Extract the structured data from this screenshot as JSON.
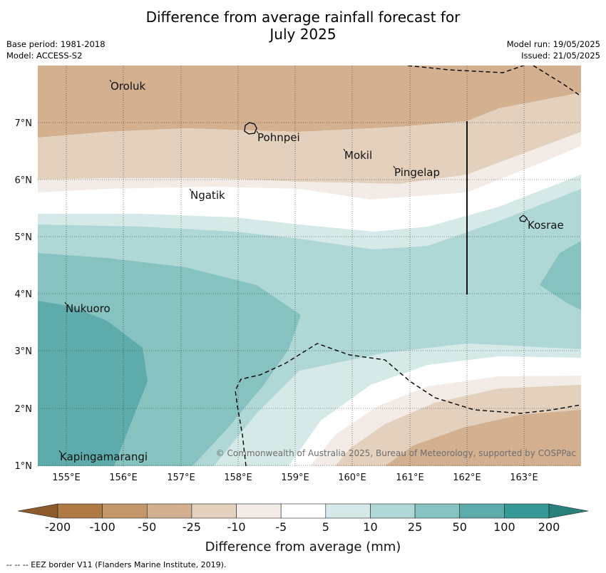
{
  "header": {
    "title_line1": "Difference from average rainfall forecast for",
    "title_line2": "July 2025",
    "base_period": "Base period: 1981-2018",
    "model": "Model: ACCESS-S2",
    "model_run": "Model run: 19/05/2025",
    "issued": "Issued: 21/05/2025"
  },
  "map": {
    "lat_labels": [
      "7°N",
      "6°N",
      "5°N",
      "4°N",
      "3°N",
      "2°N",
      "1°N"
    ],
    "lon_labels": [
      "155°E",
      "156°E",
      "157°E",
      "158°E",
      "159°E",
      "160°E",
      "161°E",
      "162°E",
      "163°E"
    ],
    "places": [
      "Oroluk",
      "Pohnpei",
      "Mokil",
      "Pingelap",
      "Ngatik",
      "Kosrae",
      "Nukuoro",
      "Kapingamarangi"
    ],
    "copyright": "© Commonwealth of Australia 2025, Bureau of Meteorology, supported by COSPPac"
  },
  "legend": {
    "ticks": [
      "-200",
      "-100",
      "-50",
      "-25",
      "-10",
      "-5",
      "5",
      "10",
      "25",
      "50",
      "100",
      "200"
    ],
    "colors": [
      "#8c5a2c",
      "#b07a44",
      "#c4976a",
      "#d2b090",
      "#e3d0bd",
      "#f3ece6",
      "#ffffff",
      "#d5e9e9",
      "#aed7d6",
      "#85c2c0",
      "#5dacab",
      "#369996",
      "#2a807d"
    ],
    "label": "Difference from average (mm)"
  },
  "footer": {
    "eez_legend": "--  --  -- EEZ border V11 (Flanders Marine Institute, 2019)."
  }
}
